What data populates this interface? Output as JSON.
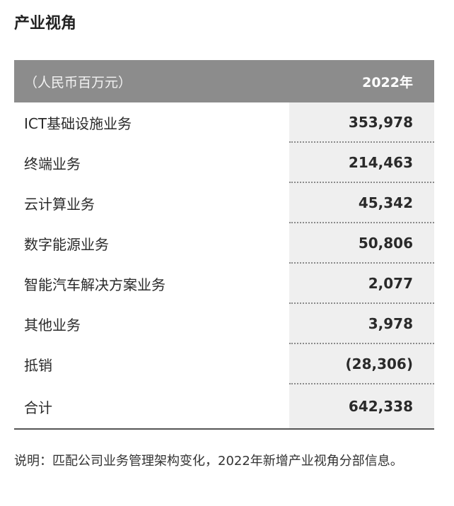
{
  "section": {
    "title": "产业视角"
  },
  "table": {
    "header": {
      "unit_label": "（人民币百万元）",
      "year_label": "2022年"
    },
    "rows": [
      {
        "name": "ICT基础设施业务",
        "value": "353,978"
      },
      {
        "name": "终端业务",
        "value": "214,463"
      },
      {
        "name": "云计算业务",
        "value": "45,342"
      },
      {
        "name": "数字能源业务",
        "value": "50,806"
      },
      {
        "name": "智能汽车解决方案业务",
        "value": "2,077"
      },
      {
        "name": "其他业务",
        "value": "3,978"
      },
      {
        "name": "抵销",
        "value": "(28,306)"
      }
    ],
    "total": {
      "name": "合计",
      "value": "642,338"
    }
  },
  "note": {
    "text": "说明：匹配公司业务管理架构变化，2022年新增产业视角分部信息。"
  }
}
